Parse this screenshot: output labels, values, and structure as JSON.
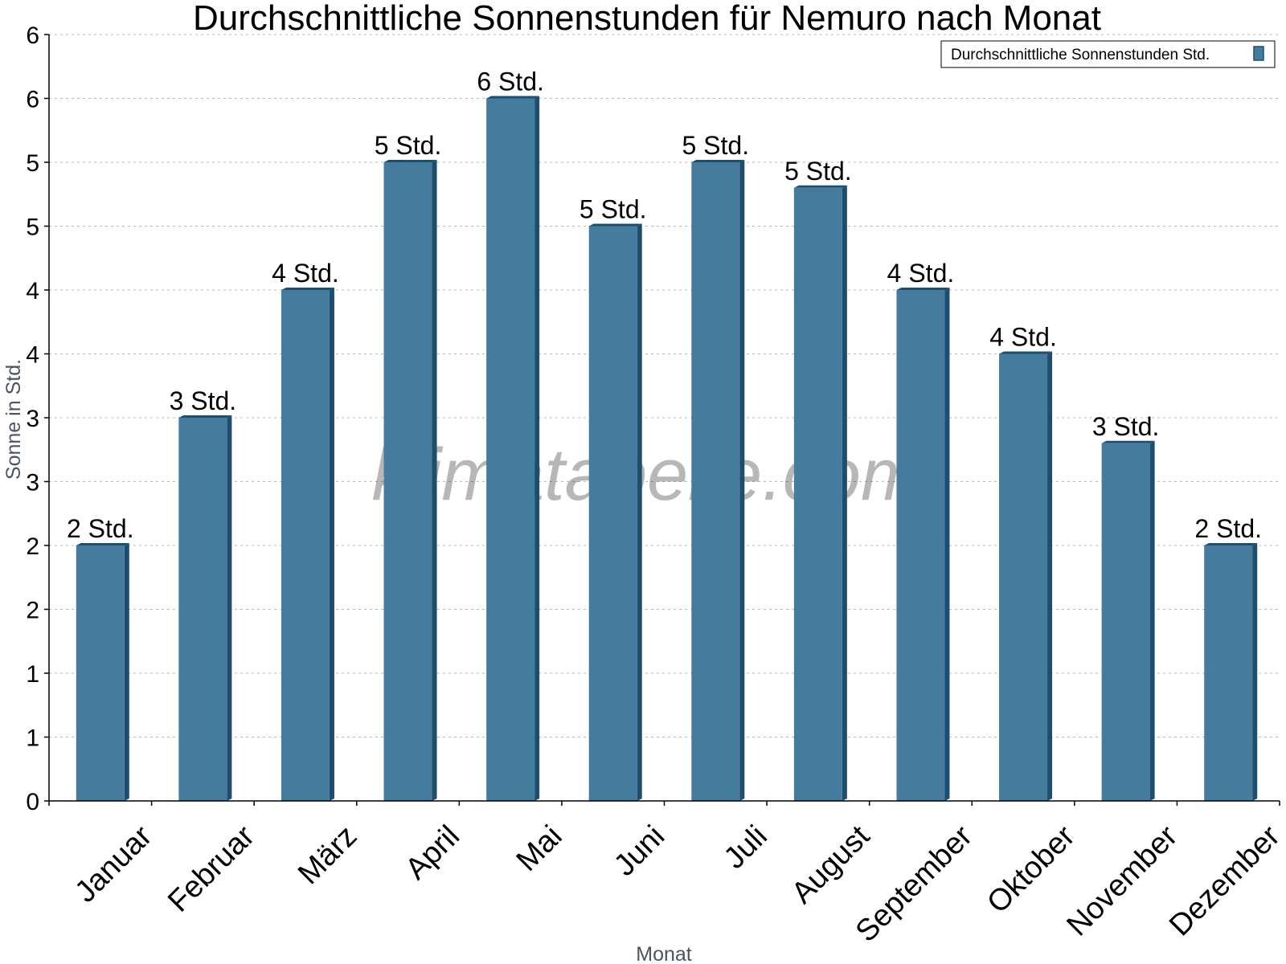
{
  "chart_data": {
    "type": "bar",
    "title": "Durchschnittliche Sonnenstunden für Nemuro nach Monat",
    "xlabel": "Monat",
    "ylabel": "Sonne in Std.",
    "categories": [
      "Januar",
      "Februar",
      "März",
      "April",
      "Mai",
      "Juni",
      "Juli",
      "August",
      "September",
      "Oktober",
      "November",
      "Dezember"
    ],
    "series": [
      {
        "name": "Durchschnittliche Sonnenstunden Std.",
        "values": [
          2.0,
          3.0,
          4.0,
          5.0,
          5.5,
          4.5,
          5.0,
          4.8,
          4.0,
          3.5,
          2.8,
          2.0
        ],
        "labels": [
          "2 Std.",
          "3 Std.",
          "4 Std.",
          "5 Std.",
          "6 Std.",
          "5 Std.",
          "5 Std.",
          "5 Std.",
          "4 Std.",
          "4 Std.",
          "3 Std.",
          "2 Std."
        ]
      }
    ],
    "ylim": [
      0,
      6
    ],
    "ytick_values": [
      0,
      0.5,
      1,
      1.5,
      2,
      2.5,
      3,
      3.5,
      4,
      4.5,
      5,
      5.5,
      6
    ],
    "ytick_labels": [
      "0",
      "1",
      "1",
      "2",
      "2",
      "3",
      "3",
      "4",
      "4",
      "5",
      "5",
      "6",
      "6"
    ],
    "grid": true,
    "legend_position": "top-right",
    "colors": {
      "bar": "#457b9d",
      "bar_side": "#1d4e6e",
      "bar_top": "#1d4e6e"
    },
    "watermark": "klimatabelle.com"
  }
}
